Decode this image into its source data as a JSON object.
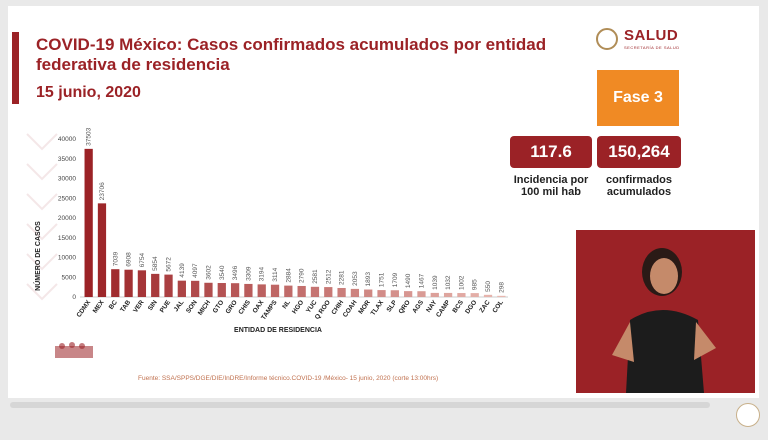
{
  "header": {
    "title": "COVID-19 México: Casos confirmados acumulados por entidad federativa de residencia",
    "date": "15 junio, 2020"
  },
  "logo": {
    "text": "SALUD",
    "subtext": "SECRETARÍA DE SALUD"
  },
  "phase": {
    "label": "Fase 3",
    "color": "#f08a24"
  },
  "stats": {
    "incidence": {
      "value": "117.6",
      "caption": "Incidencia por 100 mil hab"
    },
    "confirmed": {
      "value": "150,264",
      "caption": "confirmados acumulados"
    }
  },
  "source": "Fuente: SSA/SPPS/DGE/DIE/InDRE/Informe técnico.COVID-19 /México- 15 junio, 2020 (corte 13:00hrs)",
  "colors": {
    "brand": "#9b2226",
    "bar_high": "#9b2226",
    "bar_low": "#e8b8b0",
    "accent": "#f08a24"
  },
  "chart_data": {
    "type": "bar",
    "xlabel": "ENTIDAD DE RESIDENCIA",
    "ylabel": "NÚMERO DE CASOS",
    "ylim": [
      0,
      40000
    ],
    "yticks": [
      0,
      5000,
      10000,
      15000,
      20000,
      25000,
      30000,
      35000,
      40000
    ],
    "grid": false,
    "categories": [
      "CDMX",
      "MEX",
      "BC",
      "TAB",
      "VER",
      "SIN",
      "PUE",
      "JAL",
      "SON",
      "MICH",
      "GTO",
      "GRO",
      "CHIS",
      "OAX",
      "TAMPS",
      "NL",
      "HGO",
      "YUC",
      "Q ROO",
      "CHIH",
      "COAH",
      "MOR",
      "TLAX",
      "SLP",
      "QRO",
      "AGS",
      "NAY",
      "CAMP",
      "BCS",
      "DGO",
      "ZAC",
      "COL"
    ],
    "values": [
      37503,
      23706,
      7039,
      6908,
      6754,
      5854,
      5672,
      4139,
      4097,
      3602,
      3540,
      3496,
      3309,
      3194,
      3114,
      2884,
      2790,
      2581,
      2512,
      2281,
      2053,
      1893,
      1751,
      1709,
      1490,
      1467,
      1039,
      1032,
      1002,
      985,
      550,
      298
    ]
  }
}
